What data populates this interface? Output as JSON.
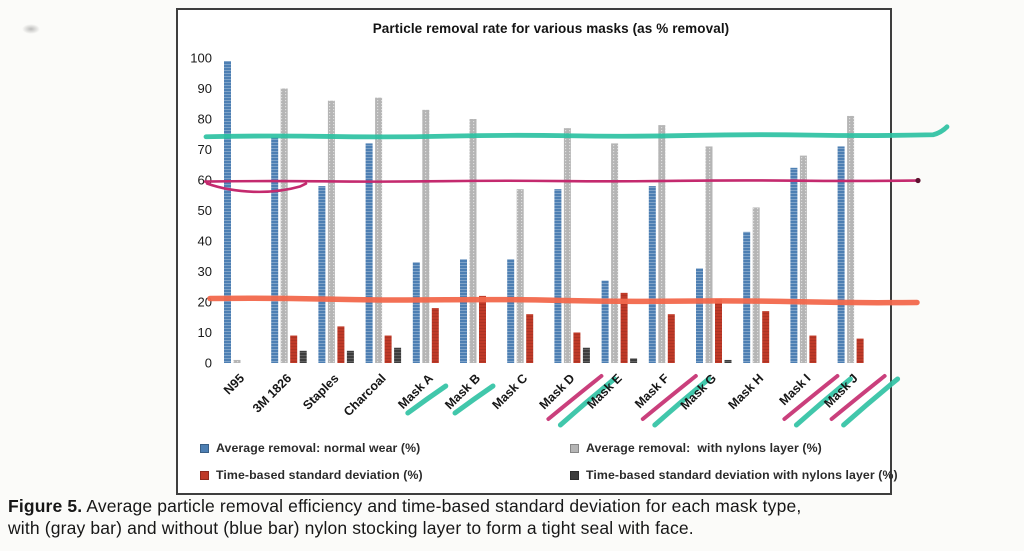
{
  "figure": {
    "caption_label": "Figure 5.",
    "caption_line1": " Average particle removal efficiency and time-based standard deviation for each mask type,",
    "caption_line2": "with (gray bar) and without (blue bar) nylon stocking layer to form a tight seal with face."
  },
  "chart_data": {
    "type": "bar",
    "title": "Particle removal rate for various masks (as % removal)",
    "xlabel": "",
    "ylabel": "",
    "ylim": [
      0,
      100
    ],
    "ytick_step": 10,
    "grid": false,
    "legend_position": "bottom",
    "categories": [
      "N95",
      "3M 1826",
      "Staples",
      "Charcoal",
      "Mask A",
      "Mask B",
      "Mask C",
      "Mask D",
      "Mask E",
      "Mask F",
      "Mask G",
      "Mask H",
      "Mask I",
      "Mask J"
    ],
    "series": [
      {
        "name": "Average removal: normal wear (%)",
        "color": "#4d7fb3",
        "values": [
          99,
          74,
          58,
          72,
          33,
          34,
          34,
          57,
          27,
          58,
          31,
          43,
          64,
          71
        ]
      },
      {
        "name": "Average removal:  with nylons layer (%)",
        "color": "#b5b5b5",
        "values": [
          1,
          90,
          86,
          87,
          83,
          80,
          57,
          77,
          72,
          78,
          71,
          51,
          68,
          81
        ]
      },
      {
        "name": "Time-based standard deviation (%)",
        "color": "#bf3a28",
        "values": [
          0,
          9,
          12,
          9,
          18,
          22,
          16,
          10,
          23,
          16,
          21,
          17,
          9,
          8
        ]
      },
      {
        "name": "Time-based standard deviation with nylons layer (%)",
        "color": "#3d3d3d",
        "values": [
          0,
          4,
          4,
          5,
          0,
          0,
          0,
          5,
          1.5,
          0,
          1,
          0,
          0,
          0
        ]
      }
    ],
    "annotations": {
      "marker_lines": [
        {
          "name": "teal-marker-line",
          "value": 74.5,
          "color": "#2cc1a2"
        },
        {
          "name": "magenta-marker-line",
          "value": 59.5,
          "color": "#c42a6e"
        },
        {
          "name": "orange-marker-line",
          "value": 20.5,
          "color": "#f2684c"
        }
      ],
      "marker_colors": {
        "teal": "#2cc1a2",
        "magenta": "#c42a6e"
      },
      "category_underlines": {
        "Mask A": [
          "teal"
        ],
        "Mask B": [
          "teal"
        ],
        "Mask D": [
          "magenta",
          "teal"
        ],
        "Mask F": [
          "magenta",
          "teal"
        ],
        "Mask I": [
          "magenta",
          "teal"
        ],
        "Mask J": [
          "magenta",
          "teal"
        ]
      }
    }
  }
}
